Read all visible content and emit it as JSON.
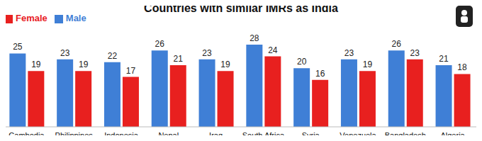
{
  "chart_data": {
    "type": "bar",
    "title": "Countries with similar IMRs as India",
    "categories": [
      "Cambodia",
      "Philippines",
      "Indonesia",
      "Nepal",
      "Iraq",
      "South Africa",
      "Syria",
      "Venezuela",
      "Bangladesh",
      "Algeria"
    ],
    "series": [
      {
        "name": "Male",
        "color": "#3f7fd6",
        "values": [
          25,
          23,
          22,
          26,
          23,
          28,
          20,
          23,
          26,
          21
        ]
      },
      {
        "name": "Female",
        "color": "#e8201f",
        "values": [
          19,
          19,
          17,
          21,
          19,
          24,
          16,
          19,
          23,
          18
        ]
      }
    ],
    "data_labels": true,
    "tick_labels": "x",
    "legend": "top-left",
    "grid": false
  }
}
